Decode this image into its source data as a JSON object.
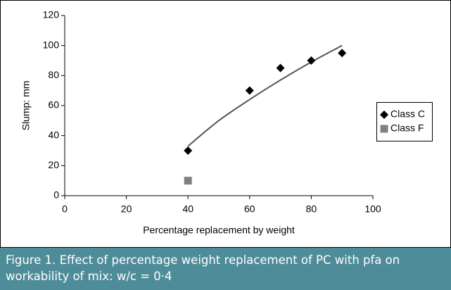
{
  "chart_data": {
    "type": "scatter",
    "xlabel": "Percentage replacement by weight",
    "ylabel": "Slump: mm",
    "xlim": [
      0,
      100
    ],
    "xticks": [
      0,
      20,
      40,
      60,
      80,
      100
    ],
    "ylim": [
      0,
      120
    ],
    "yticks": [
      0,
      20,
      40,
      60,
      80,
      100,
      120
    ],
    "legend": "right",
    "series": [
      {
        "name": "Class C",
        "color": "#000000",
        "marker": "diamond",
        "x": [
          40,
          60,
          70,
          80,
          90
        ],
        "values": [
          30,
          70,
          85,
          90,
          95
        ]
      },
      {
        "name": "Class F",
        "color": "#808080",
        "marker": "square",
        "x": [
          40
        ],
        "values": [
          10
        ]
      }
    ],
    "trendline": {
      "color": "#555555",
      "x": [
        40,
        50,
        60,
        70,
        80,
        90
      ],
      "values": [
        33,
        50,
        64,
        77,
        89,
        100
      ]
    },
    "caption": "Figure 1. Effect of percentage weight replacement of PC with pfa on workability of mix: w/c = 0·4"
  }
}
